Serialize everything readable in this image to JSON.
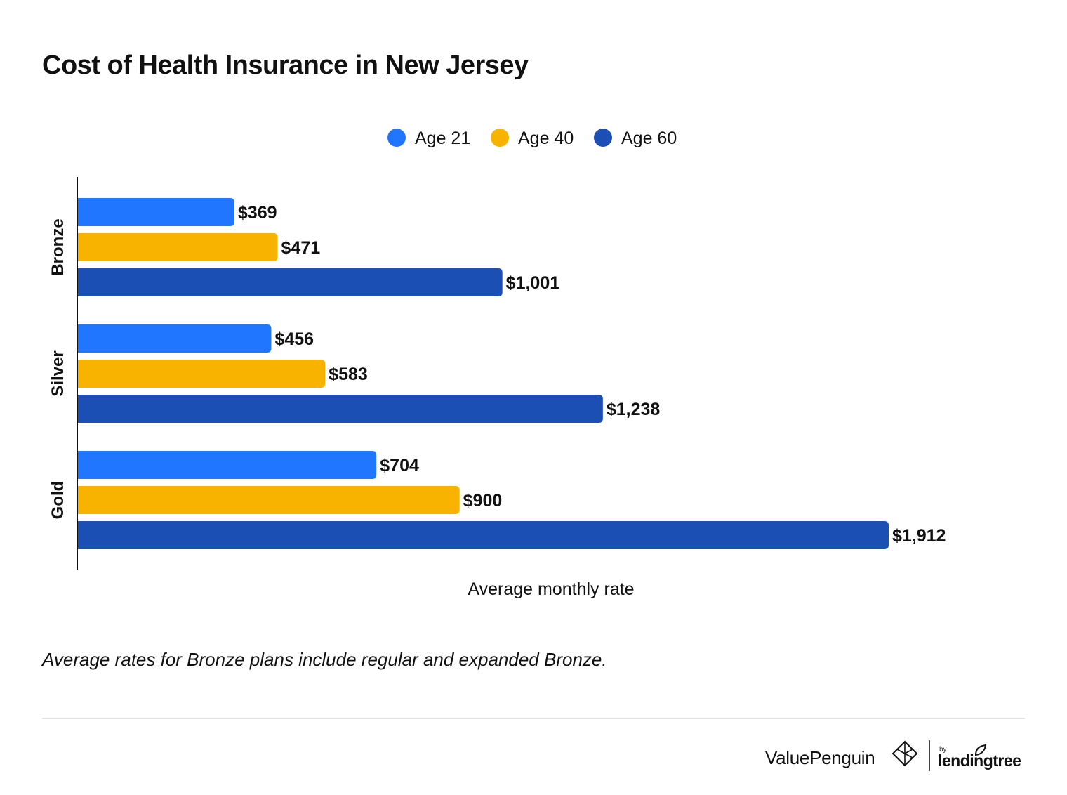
{
  "chart_data": {
    "type": "bar",
    "orientation": "horizontal",
    "title": "Cost of Health Insurance in New Jersey",
    "xlabel": "Average monthly rate",
    "ylabel": "",
    "categories": [
      "Bronze",
      "Silver",
      "Gold"
    ],
    "series": [
      {
        "name": "Age 21",
        "color": "#2176ff",
        "values": [
          369,
          456,
          704
        ],
        "labels": [
          "$369",
          "$456",
          "$704"
        ]
      },
      {
        "name": "Age 40",
        "color": "#f8b200",
        "values": [
          471,
          583,
          900
        ],
        "labels": [
          "$471",
          "$583",
          "$900"
        ]
      },
      {
        "name": "Age 60",
        "color": "#1c4fb4",
        "values": [
          1001,
          1238,
          1912
        ],
        "labels": [
          "$1,001",
          "$1,238",
          "$1,912"
        ]
      }
    ],
    "xlim": [
      0,
      2000
    ],
    "grid": false,
    "legend_position": "top-center",
    "note": "Average rates for Bronze plans include regular and expanded Bronze."
  },
  "branding": {
    "publisher": "ValuePenguin",
    "by": "by",
    "partner": "lendingtree"
  }
}
